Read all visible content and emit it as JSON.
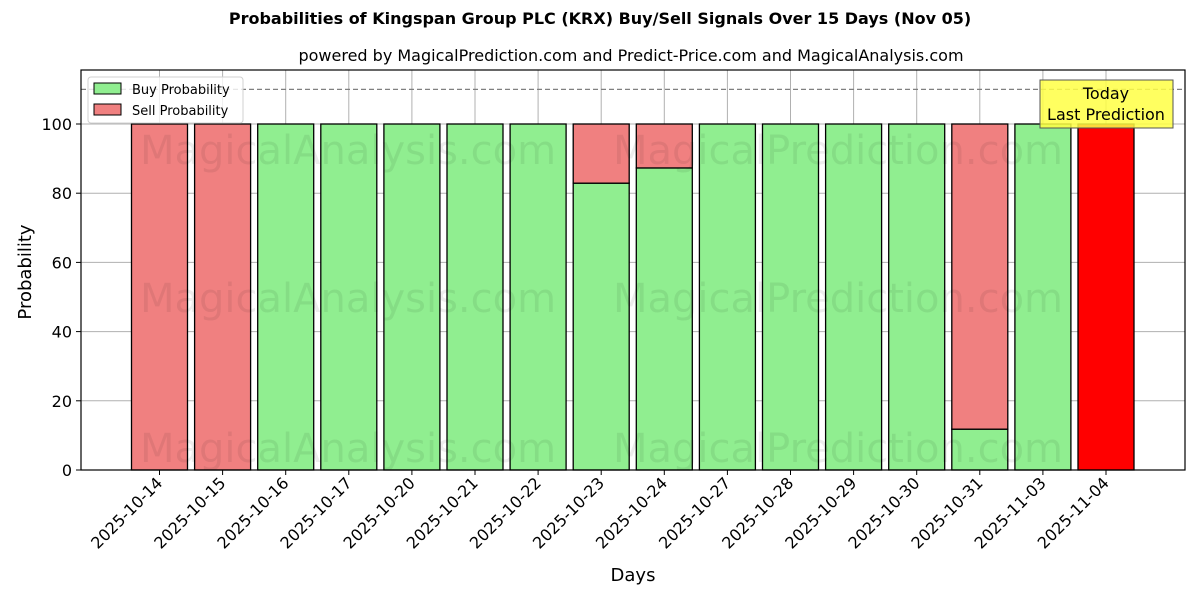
{
  "header": {
    "title": "Probabilities of Kingspan Group PLC (KRX) Buy/Sell Signals Over 15 Days (Nov 05)",
    "subtitle": "powered by MagicalPrediction.com and Predict-Price.com and MagicalAnalysis.com"
  },
  "legend": {
    "buy_label": "Buy Probability",
    "sell_label": "Sell Probability"
  },
  "annotation": {
    "line1": "Today",
    "line2": "Last Prediction"
  },
  "axes": {
    "xlabel": "Days",
    "ylabel": "Probability",
    "yticks": [
      "0",
      "20",
      "40",
      "60",
      "80",
      "100"
    ]
  },
  "watermarks": [
    "MagicalAnalysis.com",
    "MagicalPrediction.com"
  ],
  "colors": {
    "buy": "#90ee90",
    "sell": "#f08080",
    "today": "#ff0000",
    "annotation_bg": "#ffff44"
  },
  "chart_data": {
    "type": "bar",
    "stacked": true,
    "title": "Probabilities of Kingspan Group PLC (KRX) Buy/Sell Signals Over 15 Days (Nov 05)",
    "subtitle": "powered by MagicalPrediction.com and Predict-Price.com and MagicalAnalysis.com",
    "xlabel": "Days",
    "ylabel": "Probability",
    "ylim": [
      0,
      115
    ],
    "yticks": [
      0,
      20,
      40,
      60,
      80,
      100
    ],
    "grid": true,
    "legend_position": "upper left",
    "reference_line": {
      "y": 110,
      "style": "dashed",
      "color": "#808080"
    },
    "categories": [
      "2025-10-14",
      "2025-10-15",
      "2025-10-16",
      "2025-10-17",
      "2025-10-20",
      "2025-10-21",
      "2025-10-22",
      "2025-10-23",
      "2025-10-24",
      "2025-10-27",
      "2025-10-28",
      "2025-10-29",
      "2025-10-30",
      "2025-10-31",
      "2025-11-03",
      "2025-11-04"
    ],
    "series": [
      {
        "name": "Buy Probability",
        "color": "#90ee90",
        "values": [
          0,
          0,
          100,
          100,
          100,
          100,
          100,
          82.9,
          87.3,
          100,
          100,
          100,
          100,
          11.8,
          100,
          0
        ]
      },
      {
        "name": "Sell Probability",
        "color": "#f08080",
        "values": [
          100,
          100,
          0,
          0,
          0,
          0,
          0,
          17.1,
          12.7,
          0,
          0,
          0,
          0,
          88.2,
          0,
          100
        ]
      }
    ],
    "annotations": [
      {
        "text": "Today\nLast Prediction",
        "category": "2025-11-04",
        "note": "last bar highlighted in red (#ff0000)"
      }
    ]
  }
}
